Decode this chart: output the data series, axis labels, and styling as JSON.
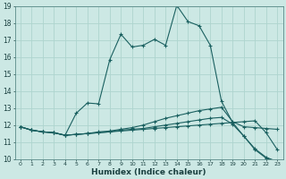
{
  "xlabel": "Humidex (Indice chaleur)",
  "bg_color": "#cce8e4",
  "grid_color": "#aed4ce",
  "line_color": "#1a6060",
  "xlim": [
    -0.5,
    23.5
  ],
  "ylim": [
    10,
    19
  ],
  "xticks": [
    0,
    1,
    2,
    3,
    4,
    5,
    6,
    7,
    8,
    9,
    10,
    11,
    12,
    13,
    14,
    15,
    16,
    17,
    18,
    19,
    20,
    21,
    22,
    23
  ],
  "yticks": [
    10,
    11,
    12,
    13,
    14,
    15,
    16,
    17,
    18,
    19
  ],
  "line1_x": [
    0,
    1,
    2,
    3,
    4,
    5,
    6,
    7,
    8,
    9,
    10,
    11,
    12,
    13,
    14,
    15,
    16,
    17,
    18,
    19,
    20,
    21,
    22,
    23
  ],
  "line1_y": [
    11.9,
    11.7,
    11.6,
    11.55,
    11.4,
    12.7,
    13.3,
    13.25,
    15.85,
    17.35,
    16.6,
    16.7,
    17.05,
    16.7,
    19.05,
    18.1,
    17.85,
    16.7,
    13.4,
    12.15,
    11.35,
    10.55,
    10.05,
    9.85
  ],
  "line2_x": [
    0,
    1,
    2,
    3,
    4,
    5,
    6,
    7,
    8,
    9,
    10,
    11,
    12,
    13,
    14,
    15,
    16,
    17,
    18,
    19,
    20,
    21,
    22,
    23
  ],
  "line2_y": [
    11.9,
    11.7,
    11.6,
    11.55,
    11.4,
    11.45,
    11.5,
    11.6,
    11.65,
    11.75,
    11.85,
    12.0,
    12.2,
    12.4,
    12.55,
    12.7,
    12.85,
    12.95,
    13.05,
    12.2,
    11.9,
    11.85,
    11.8,
    11.75
  ],
  "line3_x": [
    0,
    1,
    2,
    3,
    4,
    5,
    6,
    7,
    8,
    9,
    10,
    11,
    12,
    13,
    14,
    15,
    16,
    17,
    18,
    19,
    20,
    21,
    22,
    23
  ],
  "line3_y": [
    11.9,
    11.7,
    11.6,
    11.55,
    11.4,
    11.45,
    11.5,
    11.55,
    11.6,
    11.65,
    11.7,
    11.75,
    11.8,
    11.85,
    11.9,
    11.95,
    12.0,
    12.05,
    12.1,
    12.15,
    12.2,
    12.25,
    11.55,
    10.55
  ],
  "line4_x": [
    0,
    1,
    2,
    3,
    4,
    5,
    6,
    7,
    8,
    9,
    10,
    11,
    12,
    13,
    14,
    15,
    16,
    17,
    18,
    19,
    20,
    21,
    22,
    23
  ],
  "line4_y": [
    11.9,
    11.7,
    11.6,
    11.55,
    11.4,
    11.45,
    11.5,
    11.55,
    11.6,
    11.7,
    11.75,
    11.8,
    11.9,
    12.0,
    12.1,
    12.2,
    12.3,
    12.4,
    12.45,
    12.05,
    11.35,
    10.6,
    10.1,
    9.85
  ]
}
